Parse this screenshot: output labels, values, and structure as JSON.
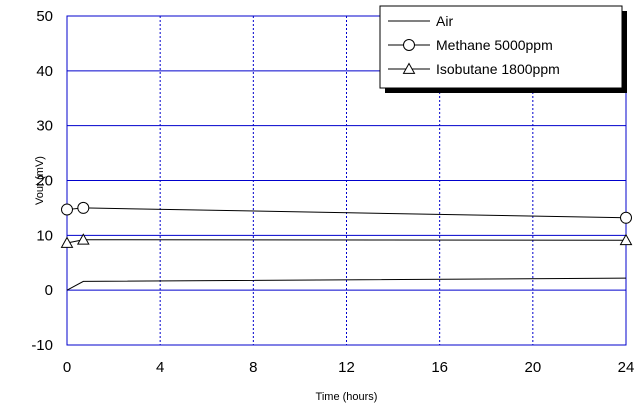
{
  "chart_data": {
    "type": "line",
    "title": "",
    "xlabel": "Time (hours)",
    "ylabel": "Vout (mV)",
    "xlim": [
      0,
      24
    ],
    "ylim": [
      -10,
      50
    ],
    "xticks": [
      0,
      4,
      8,
      12,
      16,
      20,
      24
    ],
    "yticks": [
      -10,
      0,
      10,
      20,
      30,
      40,
      50
    ],
    "xtick_labels": [
      "0",
      "4",
      "8",
      "12",
      "16",
      "20",
      "24"
    ],
    "ytick_labels": [
      "-10",
      "0",
      "10",
      "20",
      "30",
      "40",
      "50"
    ],
    "grid": {
      "vertical": "dotted",
      "horizontal": "solid"
    },
    "legend_position": "top-right",
    "colors": {
      "line": "#000000",
      "grid": "#0000cc",
      "frame": "#0000cc"
    },
    "series": [
      {
        "name": "Air",
        "marker": "none",
        "x": [
          0,
          0.7,
          24
        ],
        "y": [
          0,
          1.6,
          2.2
        ]
      },
      {
        "name": "Methane 5000ppm",
        "marker": "circle",
        "x": [
          0,
          0.7,
          24
        ],
        "y": [
          14.7,
          15.0,
          13.2
        ]
      },
      {
        "name": "Isobutane 1800ppm",
        "marker": "triangle",
        "x": [
          0,
          0.7,
          24
        ],
        "y": [
          8.6,
          9.2,
          9.1
        ]
      }
    ]
  }
}
